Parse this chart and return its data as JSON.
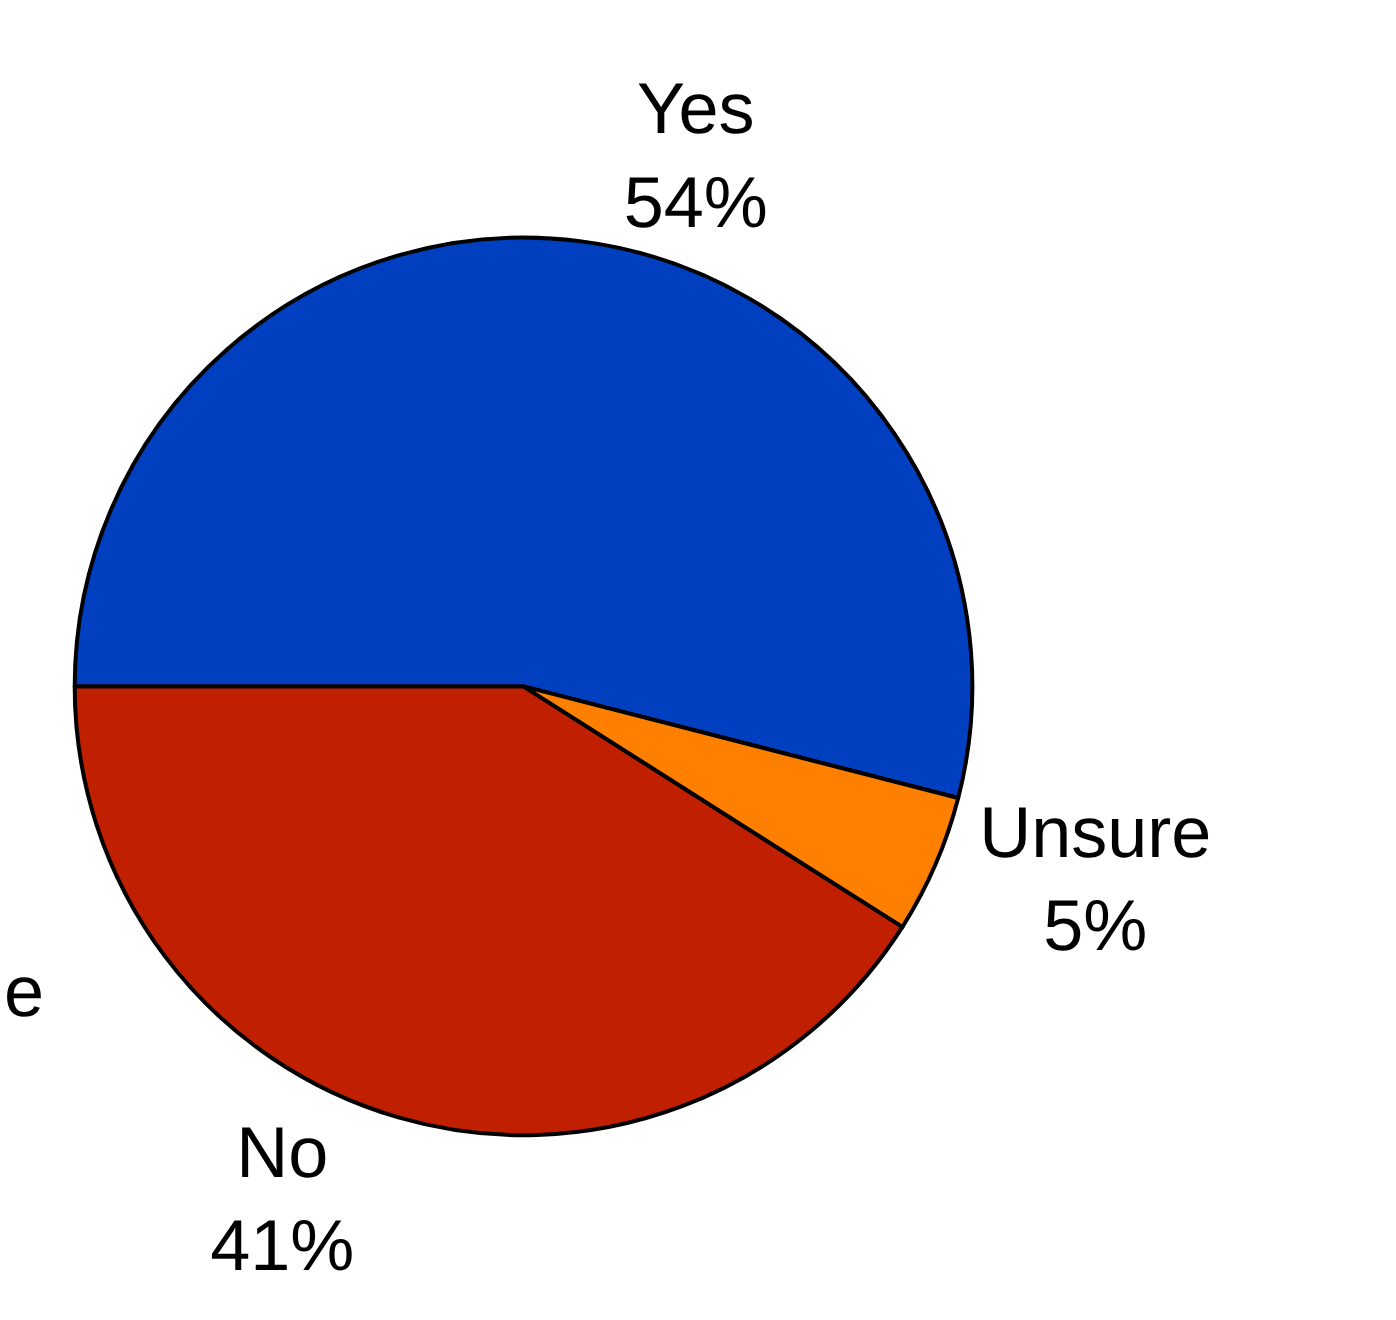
{
  "chart_data": {
    "type": "pie",
    "categories": [
      "Yes",
      "No",
      "Unsure"
    ],
    "values": [
      54,
      41,
      5
    ],
    "value_labels": [
      "54%",
      "41%",
      "5%"
    ],
    "colors": [
      "#0040c0",
      "#c02000",
      "#ff8000"
    ],
    "legend": false,
    "annotations": [
      "e"
    ]
  }
}
